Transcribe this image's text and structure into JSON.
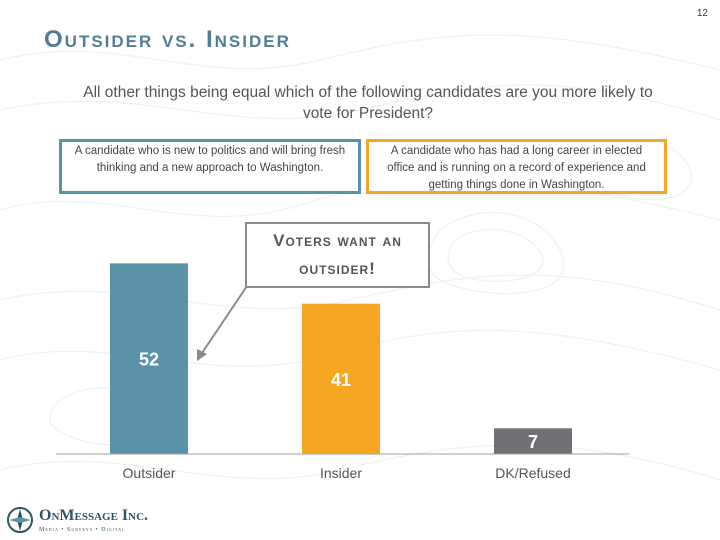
{
  "page_number": "12",
  "title": "Outsider vs. Insider",
  "question": "All other things being equal which of the following candidates are you more likely to vote for President?",
  "definitions": {
    "outsider": "A candidate who is new to politics and will bring fresh thinking and a new approach to Washington.",
    "insider": "A candidate who has had a long career in elected office and is running on a record of experience and getting things done in Washington."
  },
  "callout": {
    "line1": "Voters want an",
    "line2": "outsider!"
  },
  "logo": {
    "name": "OnMessage Inc.",
    "tagline": "Media • Surveys • Digital"
  },
  "colors": {
    "outsider": "#5a93a8",
    "insider": "#f5a623",
    "dk": "#6f7175",
    "title": "#527e93"
  },
  "chart_data": {
    "type": "bar",
    "categories": [
      "Outsider",
      "Insider",
      "DK/Refused"
    ],
    "values": [
      52,
      41,
      7
    ],
    "title": "",
    "xlabel": "",
    "ylabel": "",
    "ylim": [
      0,
      60
    ],
    "grid": false,
    "legend": "none"
  }
}
